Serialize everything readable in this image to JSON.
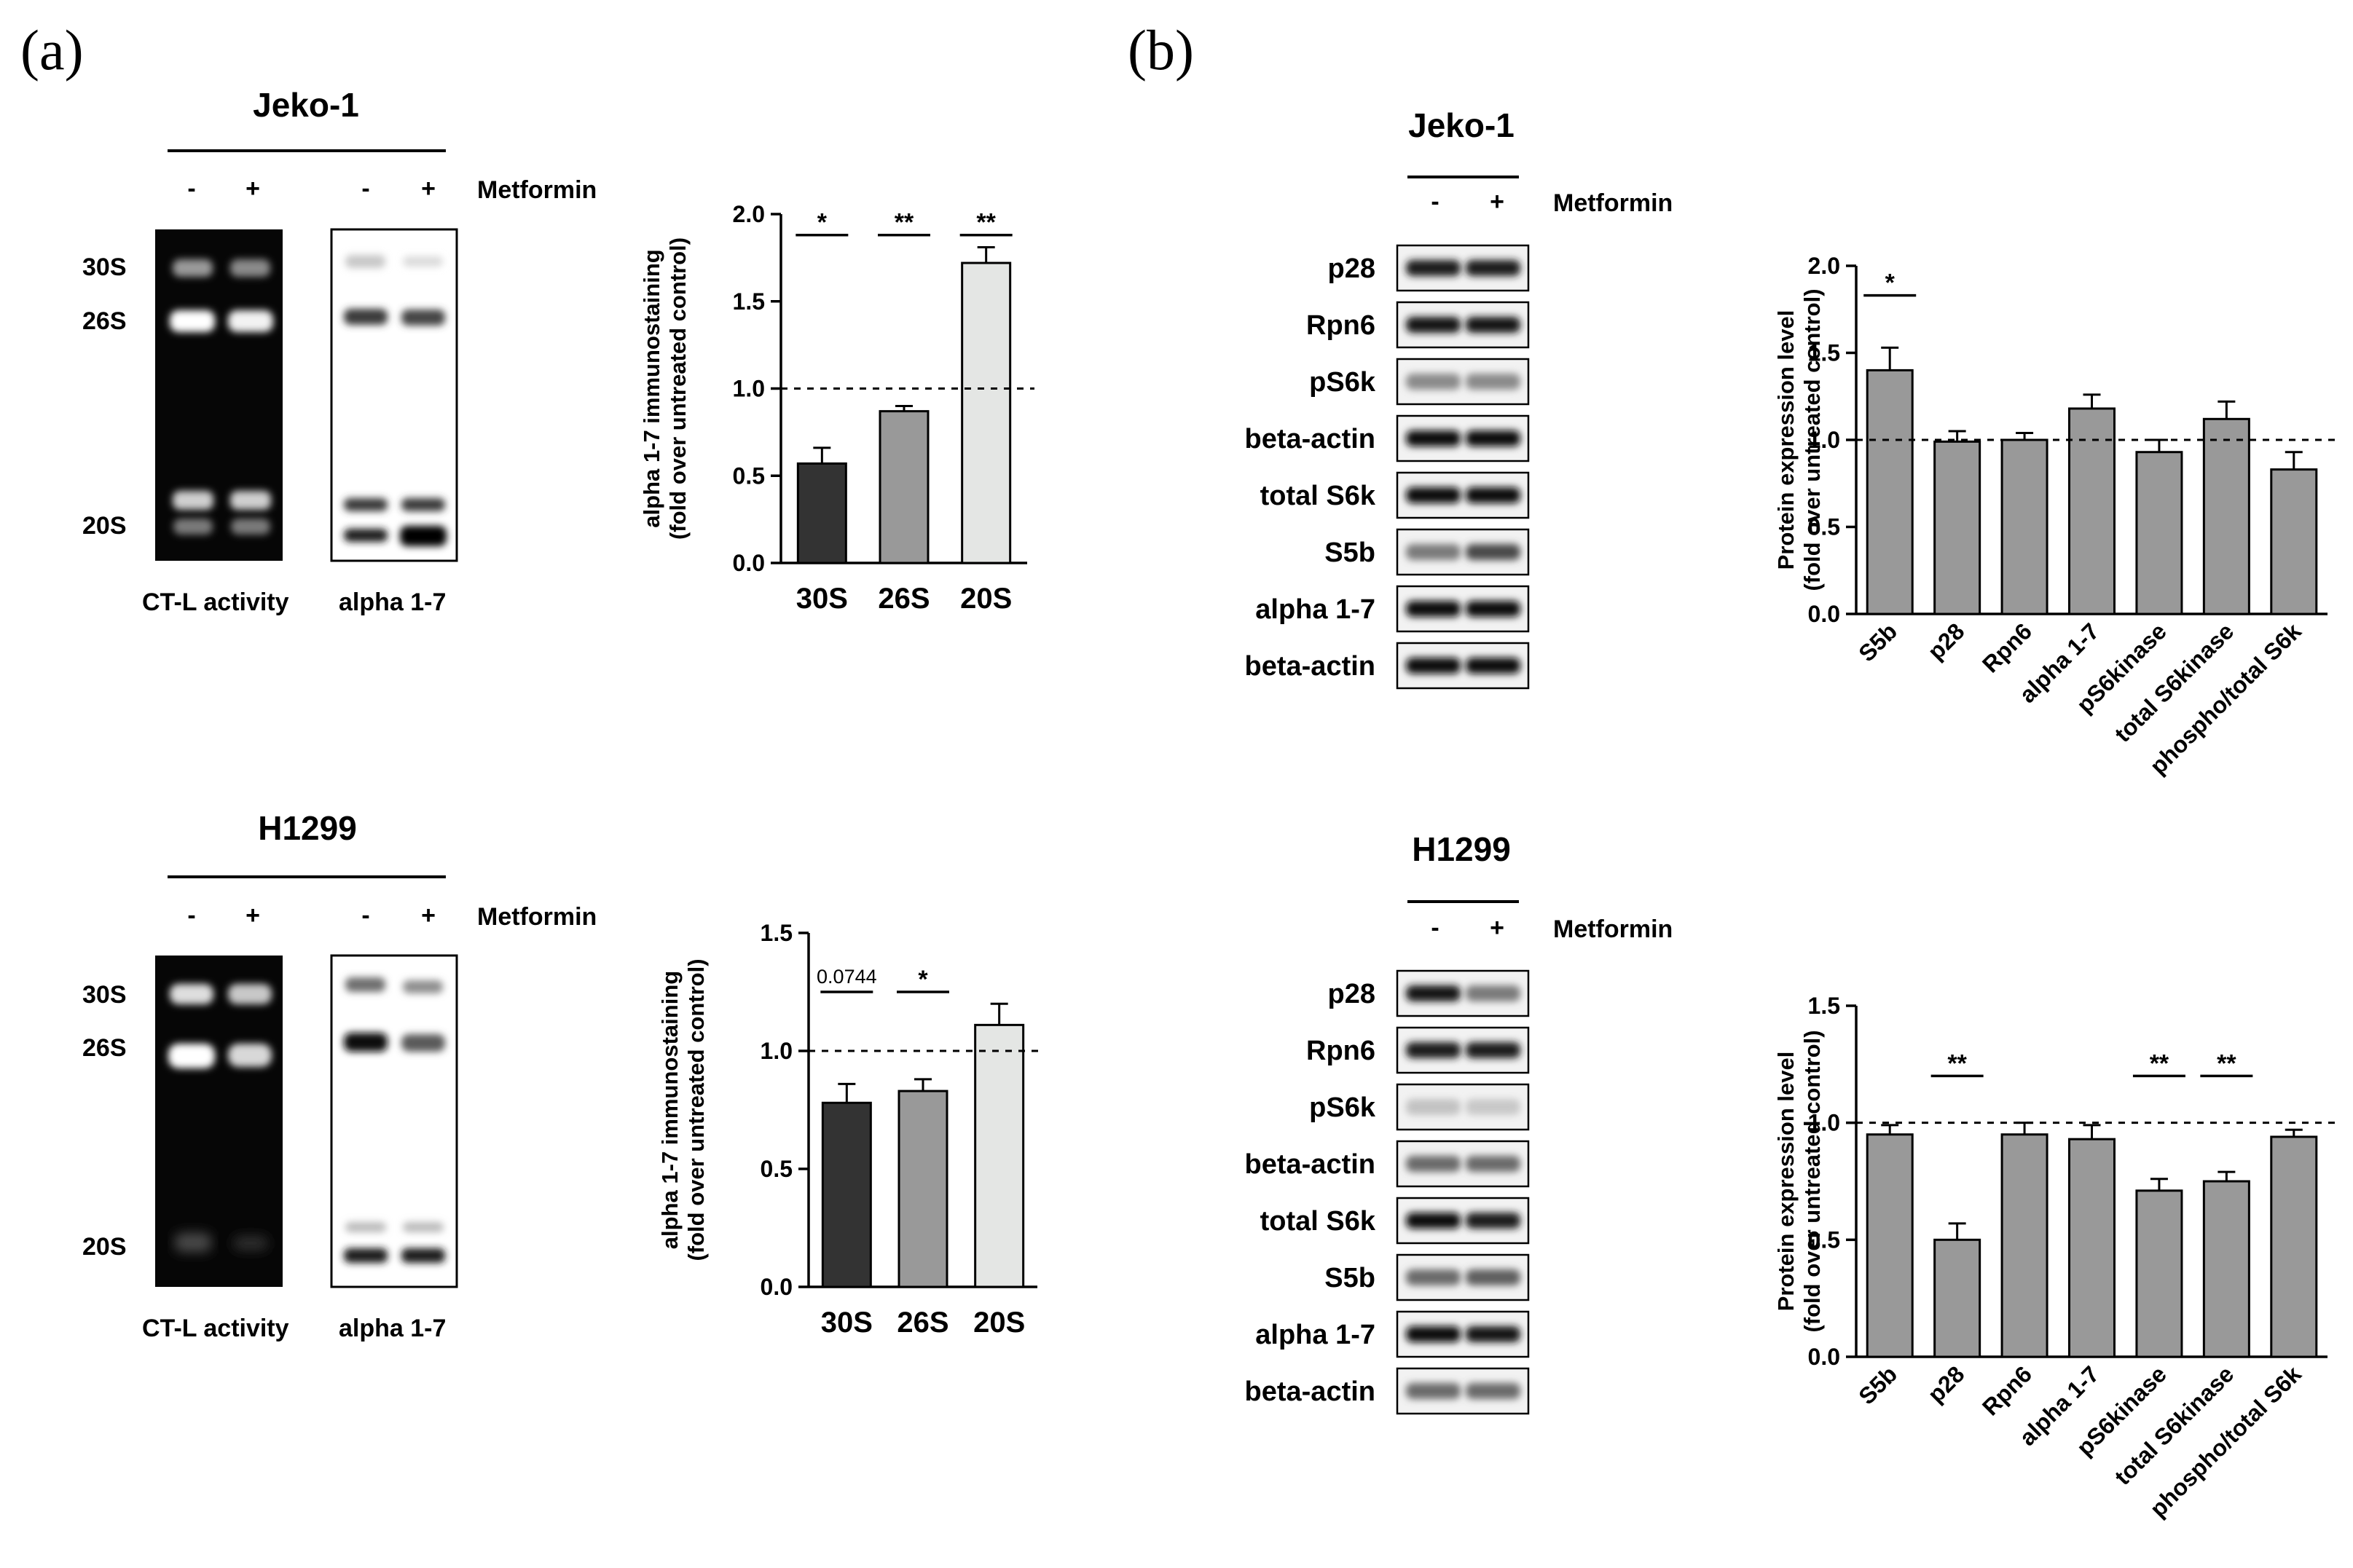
{
  "panels": {
    "a": {
      "label": "(a)",
      "treatment_label": "Metformin",
      "minus": "-",
      "plus": "+",
      "jeko": {
        "cell_line": "Jeko-1",
        "band_labels": [
          "30S",
          "26S",
          "20S"
        ],
        "captions": [
          "CT-L activity",
          "alpha 1-7"
        ]
      },
      "h1299": {
        "cell_line": "H1299",
        "band_labels": [
          "30S",
          "26S",
          "20S"
        ],
        "captions": [
          "CT-L activity",
          "alpha 1-7"
        ]
      }
    },
    "b": {
      "label": "(b)",
      "treatment_label": "Metformin",
      "minus": "-",
      "plus": "+",
      "jeko": {
        "cell_line": "Jeko-1",
        "blot_labels": [
          "p28",
          "Rpn6",
          "pS6k",
          "beta-actin",
          "total S6k",
          "S5b",
          "alpha 1-7",
          "beta-actin"
        ]
      },
      "h1299": {
        "cell_line": "H1299",
        "blot_labels": [
          "p28",
          "Rpn6",
          "pS6k",
          "beta-actin",
          "total S6k",
          "S5b",
          "alpha 1-7",
          "beta-actin"
        ]
      }
    }
  },
  "chart_data": [
    {
      "id": "a-jeko",
      "type": "bar",
      "categories": [
        "30S",
        "26S",
        "20S"
      ],
      "values": [
        0.57,
        0.87,
        1.72
      ],
      "errors": [
        0.09,
        0.03,
        0.09
      ],
      "colors": [
        "#333333",
        "#999999",
        "#e4e6e4"
      ],
      "ylabel": "alpha 1-7 immunostaining",
      "ylabel2": "(fold over untreated control)",
      "ylim": [
        0,
        2.0
      ],
      "yticks": [
        0.0,
        0.5,
        1.0,
        1.5,
        2.0
      ],
      "ytick_labels": [
        "0.0",
        "0.5",
        "1.0",
        "1.5",
        "2.0"
      ],
      "reference_line": 1.0,
      "significance": [
        {
          "category": "30S",
          "label": "*",
          "y": 1.88
        },
        {
          "category": "26S",
          "label": "**",
          "y": 1.88
        },
        {
          "category": "20S",
          "label": "**",
          "y": 1.88
        }
      ]
    },
    {
      "id": "a-h1299",
      "type": "bar",
      "categories": [
        "30S",
        "26S",
        "20S"
      ],
      "values": [
        0.78,
        0.83,
        1.11
      ],
      "errors": [
        0.08,
        0.05,
        0.09
      ],
      "colors": [
        "#333333",
        "#999999",
        "#e4e6e4"
      ],
      "ylabel": "alpha 1-7 immunostaining",
      "ylabel2": "(fold over untreated control)",
      "ylim": [
        0,
        1.5
      ],
      "yticks": [
        0.0,
        0.5,
        1.0,
        1.5
      ],
      "ytick_labels": [
        "0.0",
        "0.5",
        "1.0",
        "1.5"
      ],
      "reference_line": 1.0,
      "significance": [
        {
          "category": "30S",
          "label": "0.0744",
          "y": 1.25,
          "small": true
        },
        {
          "category": "26S",
          "label": "*",
          "y": 1.25
        }
      ]
    },
    {
      "id": "b-jeko",
      "type": "bar",
      "categories": [
        "S5b",
        "p28",
        "Rpn6",
        "alpha 1-7",
        "pS6kinase",
        "total S6kinase",
        "phospho/total S6k"
      ],
      "values": [
        1.4,
        0.99,
        1.0,
        1.18,
        0.93,
        1.12,
        0.83
      ],
      "errors": [
        0.13,
        0.06,
        0.04,
        0.08,
        0.07,
        0.1,
        0.1
      ],
      "colors": [
        "#999999",
        "#999999",
        "#999999",
        "#999999",
        "#999999",
        "#999999",
        "#999999"
      ],
      "ylabel": "Protein expression level",
      "ylabel2": "(fold over untreated control)",
      "ylim": [
        0,
        2.0
      ],
      "yticks": [
        0.0,
        0.5,
        1.0,
        1.5,
        2.0
      ],
      "ytick_labels": [
        "0.0",
        "0.5",
        "1.0",
        "1.5",
        "2.0"
      ],
      "reference_line": 1.0,
      "significance": [
        {
          "category": "S5b",
          "label": "*",
          "y": 1.83
        }
      ]
    },
    {
      "id": "b-h1299",
      "type": "bar",
      "categories": [
        "S5b",
        "p28",
        "Rpn6",
        "alpha 1-7",
        "pS6kinase",
        "total S6kinase",
        "phospho/total S6k"
      ],
      "values": [
        0.95,
        0.5,
        0.95,
        0.93,
        0.71,
        0.75,
        0.94
      ],
      "errors": [
        0.04,
        0.07,
        0.05,
        0.06,
        0.05,
        0.04,
        0.03
      ],
      "colors": [
        "#999999",
        "#999999",
        "#999999",
        "#999999",
        "#999999",
        "#999999",
        "#999999"
      ],
      "ylabel": "Protein expression level",
      "ylabel2": "(fold over untreated control)",
      "ylim": [
        0,
        1.5
      ],
      "yticks": [
        0.0,
        0.5,
        1.0,
        1.5
      ],
      "ytick_labels": [
        "0.0",
        "0.5",
        "1.0",
        "1.5"
      ],
      "reference_line": 1.0,
      "significance": [
        {
          "category": "p28",
          "label": "**",
          "y": 1.2
        },
        {
          "category": "pS6kinase",
          "label": "**",
          "y": 1.2
        },
        {
          "category": "total S6kinase",
          "label": "**",
          "y": 1.2
        }
      ]
    }
  ]
}
